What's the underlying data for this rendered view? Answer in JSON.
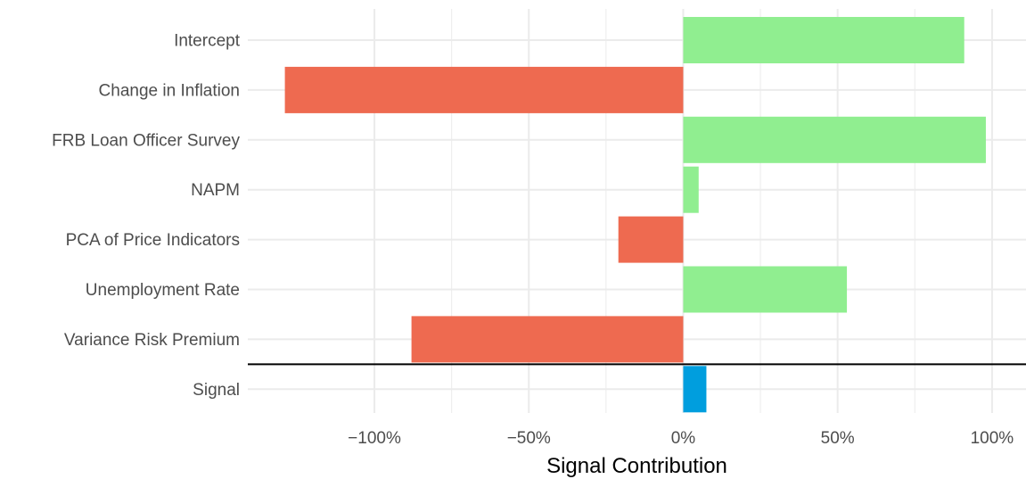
{
  "chart_data": {
    "type": "bar",
    "orientation": "horizontal",
    "categories": [
      "Intercept",
      "Change in Inflation",
      "FRB Loan Officer Survey",
      "NAPM",
      "PCA of Price Indicators",
      "Unemployment Rate",
      "Variance Risk Premium",
      "Signal"
    ],
    "values": [
      91,
      -129,
      98,
      5,
      -21,
      53,
      -88,
      7.5
    ],
    "xlabel": "Signal Contribution",
    "ylabel": "",
    "xlim": [
      -141,
      111
    ],
    "x_ticks": [
      -100,
      -50,
      0,
      50,
      100
    ],
    "x_tick_labels": [
      "−100%",
      "−50%",
      "0%",
      "50%",
      "100%"
    ],
    "grid": true,
    "legend": "none",
    "separator_below": "Variance Risk Premium",
    "colors": {
      "positive": "#90ee90",
      "negative": "#ee6a50",
      "signal": "#009ede",
      "grid": "#ebebeb",
      "separator": "#000000"
    }
  }
}
